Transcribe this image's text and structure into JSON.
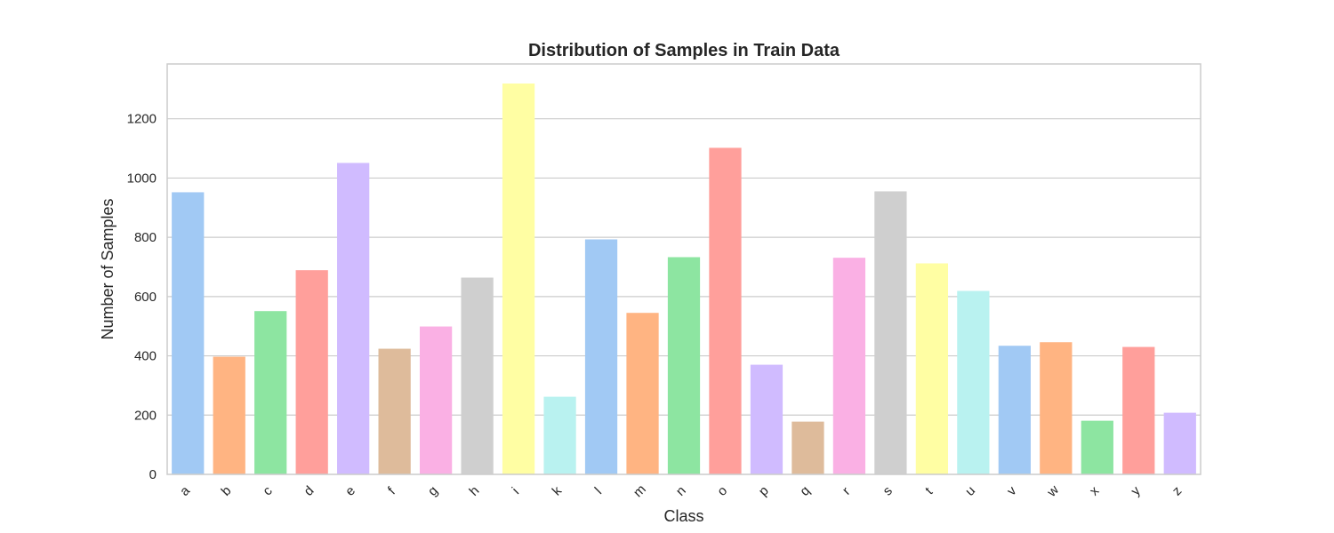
{
  "chart_data": {
    "type": "bar",
    "title": "Distribution of Samples in Train Data",
    "xlabel": "Class",
    "ylabel": "Number of Samples",
    "categories": [
      "a",
      "b",
      "c",
      "d",
      "e",
      "f",
      "g",
      "h",
      "i",
      "k",
      "l",
      "m",
      "n",
      "o",
      "p",
      "q",
      "r",
      "s",
      "t",
      "u",
      "v",
      "w",
      "x",
      "y",
      "z"
    ],
    "values": [
      952,
      397,
      551,
      689,
      1051,
      424,
      499,
      664,
      1319,
      262,
      793,
      545,
      733,
      1102,
      370,
      178,
      731,
      955,
      712,
      619,
      434,
      446,
      181,
      430,
      208
    ],
    "colors": [
      "#a1c9f4",
      "#ffb482",
      "#8de5a1",
      "#ff9f9b",
      "#d0bbff",
      "#debb9b",
      "#fab0e4",
      "#cfcfcf",
      "#fffea3",
      "#b9f2f0"
    ],
    "yticks": [
      0,
      200,
      400,
      600,
      800,
      1000,
      1200
    ],
    "ylim": [
      0,
      1385
    ],
    "grid": true,
    "legend": "none"
  }
}
